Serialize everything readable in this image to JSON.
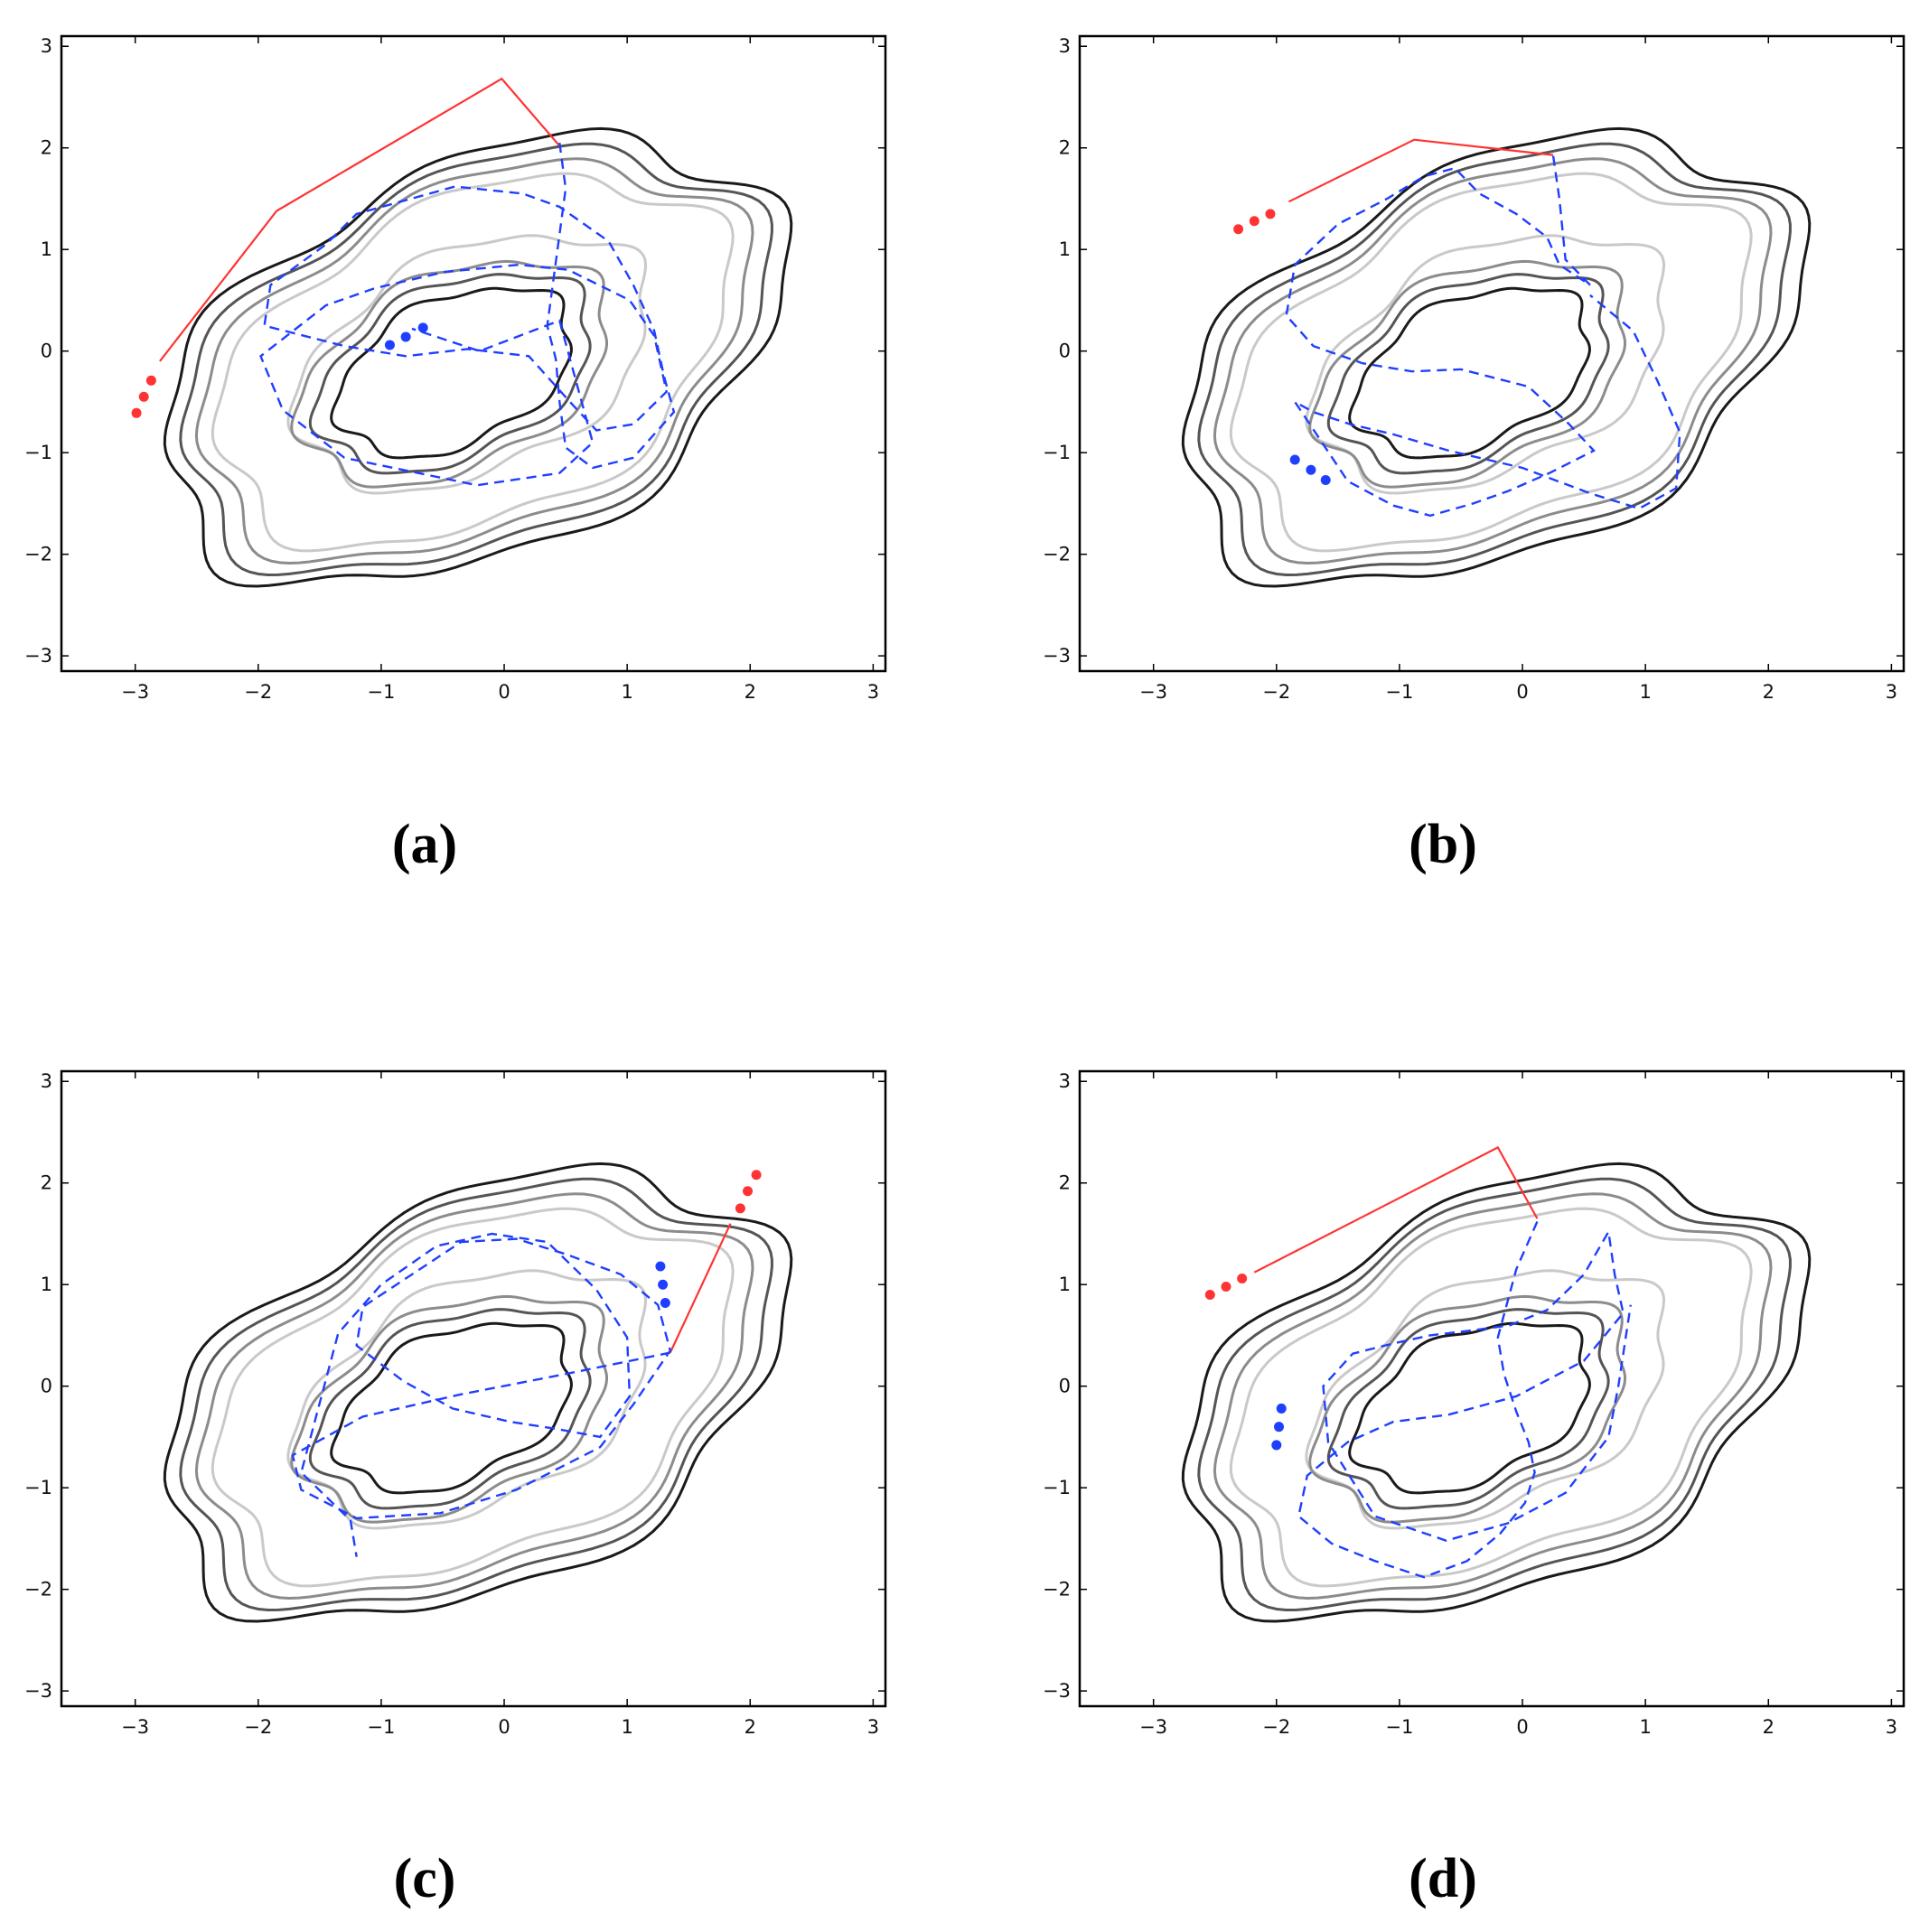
{
  "figure": {
    "panels": [
      "(a)",
      "(b)",
      "(c)",
      "(d)"
    ]
  },
  "colors": {
    "contour_levels": [
      "#1a1a1a",
      "#555555",
      "#8c8c8c",
      "#c9c9c9"
    ],
    "route": "#ff3333",
    "track": "#1f3fff",
    "frame": "#000000"
  },
  "chart_data": [
    {
      "type": "line",
      "panel_label": "(a)",
      "xlim": [
        -3.6,
        3.1
      ],
      "ylim": [
        -3.15,
        3.1
      ],
      "xticks": [
        -3,
        -2,
        -1,
        0,
        1,
        2,
        3
      ],
      "yticks": [
        -3,
        -2,
        -1,
        0,
        1,
        2,
        3
      ],
      "xtick_labels": [
        "−3",
        "−2",
        "−1",
        "0",
        "1",
        "2",
        "3"
      ],
      "ytick_labels": [
        "−3",
        "−2",
        "−1",
        "0",
        "1",
        "2",
        "3"
      ],
      "grid": false,
      "series": [
        {
          "style": "solid",
          "color": "#ff3333",
          "x": [
            -2.8,
            -1.85,
            -0.02,
            0.45
          ],
          "y": [
            -0.1,
            1.38,
            2.68,
            2.02
          ]
        },
        {
          "style": "dashed",
          "color": "#1f3fff",
          "x": [
            0.45,
            0.5,
            0.35,
            0.42,
            0.45,
            0.5,
            0.72,
            1.05,
            1.38,
            1.3,
            1.22,
            1.05,
            0.85,
            0.45,
            0.15,
            -0.4,
            -1.2,
            -1.45,
            -1.9,
            -1.95,
            -1.3,
            -0.8,
            -0.3,
            0.2,
            0.55,
            0.75,
            1.05,
            1.32,
            1.22,
            1.02,
            0.52,
            0.12,
            -0.48,
            -1.05,
            -1.45,
            -1.98,
            -1.8,
            -1.3,
            -0.22,
            0.45,
            0.72,
            0.45,
            -0.2,
            -0.75
          ],
          "y": [
            2.05,
            1.6,
            0.25,
            -0.08,
            -0.5,
            -0.95,
            -1.15,
            -1.05,
            -0.6,
            -0.25,
            0.2,
            0.65,
            1.08,
            1.42,
            1.55,
            1.62,
            1.35,
            1.05,
            0.65,
            0.25,
            0.05,
            -0.05,
            0.02,
            -0.05,
            -0.52,
            -0.78,
            -0.72,
            -0.4,
            0.15,
            0.5,
            0.8,
            0.85,
            0.78,
            0.62,
            0.45,
            -0.05,
            -0.58,
            -1.05,
            -1.32,
            -1.2,
            -0.9,
            0.3,
            0.0,
            0.22
          ]
        },
        {
          "type": "scatter",
          "color": "#ff3333",
          "x": [
            -2.99,
            -2.93,
            -2.87
          ],
          "y": [
            -0.61,
            -0.45,
            -0.29
          ]
        },
        {
          "type": "scatter",
          "color": "#1f3fff",
          "x": [
            -0.93,
            -0.8,
            -0.66
          ],
          "y": [
            0.06,
            0.14,
            0.23
          ]
        }
      ]
    },
    {
      "type": "line",
      "panel_label": "(b)",
      "xlim": [
        -3.6,
        3.1
      ],
      "ylim": [
        -3.15,
        3.1
      ],
      "xticks": [
        -3,
        -2,
        -1,
        0,
        1,
        2,
        3
      ],
      "yticks": [
        -3,
        -2,
        -1,
        0,
        1,
        2,
        3
      ],
      "xtick_labels": [
        "−3",
        "−2",
        "−1",
        "0",
        "1",
        "2",
        "3"
      ],
      "ytick_labels": [
        "−3",
        "−2",
        "−1",
        "0",
        "1",
        "2",
        "3"
      ],
      "grid": false,
      "series": [
        {
          "style": "solid",
          "color": "#ff3333",
          "x": [
            -1.9,
            -0.88,
            0.25
          ],
          "y": [
            1.47,
            2.08,
            1.93
          ]
        },
        {
          "style": "dashed",
          "color": "#1f3fff",
          "x": [
            0.25,
            0.3,
            0.35,
            0.55,
            0.3,
            0.2,
            -0.05,
            -0.35,
            -0.55,
            -0.8,
            -1.1,
            -1.5,
            -1.85,
            -1.92,
            -1.7,
            -1.3,
            -0.9,
            -0.5,
            0.05,
            0.38,
            0.58,
            0.22,
            -0.12,
            -0.4,
            -0.75,
            -1.05,
            -1.42,
            -1.85,
            -1.7,
            -1.4,
            -1.05,
            -0.6,
            0.0,
            0.55,
            0.95,
            1.25,
            1.28,
            1.1,
            0.9,
            0.55
          ],
          "y": [
            1.92,
            1.5,
            0.9,
            0.65,
            0.85,
            1.12,
            1.35,
            1.55,
            1.8,
            1.72,
            1.5,
            1.25,
            0.85,
            0.35,
            0.05,
            -0.12,
            -0.2,
            -0.18,
            -0.35,
            -0.72,
            -0.98,
            -1.2,
            -1.38,
            -1.5,
            -1.62,
            -1.52,
            -1.28,
            -0.5,
            -0.6,
            -0.72,
            -0.82,
            -0.98,
            -1.15,
            -1.4,
            -1.55,
            -1.35,
            -0.8,
            -0.3,
            0.2,
            0.55
          ]
        },
        {
          "type": "scatter",
          "color": "#ff3333",
          "x": [
            -2.31,
            -2.18,
            -2.05
          ],
          "y": [
            1.2,
            1.28,
            1.35
          ]
        },
        {
          "type": "scatter",
          "color": "#1f3fff",
          "x": [
            -1.85,
            -1.72,
            -1.6
          ],
          "y": [
            -1.07,
            -1.17,
            -1.27
          ]
        }
      ]
    },
    {
      "type": "line",
      "panel_label": "(c)",
      "xlim": [
        -3.6,
        3.1
      ],
      "ylim": [
        -3.15,
        3.1
      ],
      "xticks": [
        -3,
        -2,
        -1,
        0,
        1,
        2,
        3
      ],
      "yticks": [
        -3,
        -2,
        -1,
        0,
        1,
        2,
        3
      ],
      "xtick_labels": [
        "−3",
        "−2",
        "−1",
        "0",
        "1",
        "2",
        "3"
      ],
      "ytick_labels": [
        "−3",
        "−2",
        "−1",
        "0",
        "1",
        "2",
        "3"
      ],
      "grid": false,
      "series": [
        {
          "style": "solid",
          "color": "#ff3333",
          "x": [
            1.84,
            1.35
          ],
          "y": [
            1.6,
            0.33
          ]
        },
        {
          "style": "dashed",
          "color": "#1f3fff",
          "x": [
            1.35,
            0.5,
            -0.35,
            -1.15,
            -1.72,
            -1.65,
            -1.2,
            -0.52,
            0.1,
            0.78,
            1.05,
            1.35,
            1.25,
            0.95,
            0.5,
            0.1,
            -0.35,
            -0.75,
            -1.15,
            -1.2,
            -0.82,
            -0.42,
            0.05,
            0.42,
            0.78,
            1.02,
            1.0,
            0.75,
            0.35,
            -0.1,
            -0.55,
            -1.0,
            -1.35,
            -1.65,
            -1.25,
            -1.2
          ],
          "y": [
            0.33,
            0.12,
            -0.08,
            -0.3,
            -0.68,
            -1.02,
            -1.3,
            -1.25,
            -1.02,
            -0.6,
            -0.18,
            0.35,
            0.8,
            1.1,
            1.3,
            1.45,
            1.42,
            1.1,
            0.78,
            0.4,
            0.05,
            -0.22,
            -0.35,
            -0.42,
            -0.5,
            -0.1,
            0.48,
            0.95,
            1.42,
            1.5,
            1.38,
            1.0,
            0.52,
            -0.85,
            -1.32,
            -1.68
          ]
        },
        {
          "type": "scatter",
          "color": "#ff3333",
          "x": [
            1.92,
            1.98,
            2.05
          ],
          "y": [
            1.75,
            1.92,
            2.08
          ]
        },
        {
          "type": "scatter",
          "color": "#1f3fff",
          "x": [
            1.27,
            1.29,
            1.31
          ],
          "y": [
            1.18,
            1.0,
            0.82
          ]
        }
      ]
    },
    {
      "type": "line",
      "panel_label": "(d)",
      "xlim": [
        -3.6,
        3.1
      ],
      "ylim": [
        -3.15,
        3.1
      ],
      "xticks": [
        -3,
        -2,
        -1,
        0,
        1,
        2,
        3
      ],
      "yticks": [
        -3,
        -2,
        -1,
        0,
        1,
        2,
        3
      ],
      "xtick_labels": [
        "−3",
        "−2",
        "−1",
        "0",
        "1",
        "2",
        "3"
      ],
      "ytick_labels": [
        "−3",
        "−2",
        "−1",
        "0",
        "1",
        "2",
        "3"
      ],
      "grid": false,
      "series": [
        {
          "style": "solid",
          "color": "#ff3333",
          "x": [
            -2.18,
            -0.2,
            0.12
          ],
          "y": [
            1.12,
            2.35,
            1.65
          ]
        },
        {
          "style": "dashed",
          "color": "#1f3fff",
          "x": [
            0.12,
            -0.05,
            -0.2,
            -0.15,
            -0.05,
            0.05,
            0.1,
            0.02,
            -0.18,
            -0.45,
            -0.8,
            -1.2,
            -1.55,
            -1.82,
            -1.75,
            -1.42,
            -1.05,
            -0.6,
            -0.05,
            0.5,
            0.82,
            0.75,
            0.7,
            0.5,
            0.2,
            -0.1,
            -0.4,
            -0.75,
            -1.05,
            -1.38,
            -1.62,
            -1.58,
            -1.2,
            -0.62,
            -0.12,
            0.35,
            0.7,
            0.78,
            0.88
          ],
          "y": [
            1.62,
            1.15,
            0.48,
            0.12,
            -0.25,
            -0.55,
            -0.85,
            -1.15,
            -1.45,
            -1.72,
            -1.88,
            -1.72,
            -1.55,
            -1.28,
            -0.88,
            -0.55,
            -0.35,
            -0.28,
            -0.1,
            0.25,
            0.72,
            1.1,
            1.52,
            1.1,
            0.75,
            0.6,
            0.55,
            0.5,
            0.42,
            0.32,
            0.0,
            -0.55,
            -1.28,
            -1.52,
            -1.35,
            -1.05,
            -0.5,
            0.0,
            0.8
          ]
        },
        {
          "type": "scatter",
          "color": "#ff3333",
          "x": [
            -2.54,
            -2.41,
            -2.28
          ],
          "y": [
            0.9,
            0.98,
            1.06
          ]
        },
        {
          "type": "scatter",
          "color": "#1f3fff",
          "x": [
            -1.96,
            -1.98,
            -2.0
          ],
          "y": [
            -0.22,
            -0.4,
            -0.58
          ]
        }
      ]
    }
  ]
}
